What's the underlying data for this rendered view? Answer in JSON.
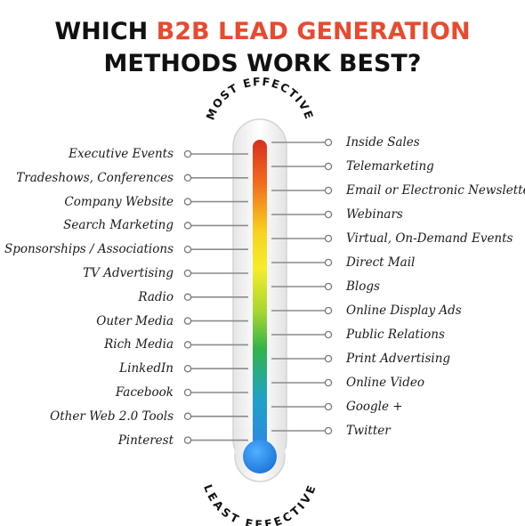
{
  "title": {
    "line1_prefix": "WHICH ",
    "line1_accent": "B2B LEAD GENERATION",
    "line2": "METHODS WORK BEST?"
  },
  "scale": {
    "top_label": "MOST EFFECTIVE",
    "bottom_label": "LEAST EFFECTIVE"
  },
  "colors": {
    "accent": "#e84a2f",
    "gradient": [
      "#d7301f",
      "#f26b1e",
      "#f7d21f",
      "#f6ec2c",
      "#a7d631",
      "#33b34a",
      "#1fa3c4",
      "#2a88e6"
    ]
  },
  "left_methods": [
    "Executive Events",
    "Tradeshows, Conferences",
    "Company Website",
    "Search Marketing",
    "Sponsorships / Associations",
    "TV Advertising",
    "Radio",
    "Outer Media",
    "Rich Media",
    "LinkedIn",
    "Facebook",
    "Other Web 2.0 Tools",
    "Pinterest"
  ],
  "right_methods": [
    "Inside Sales",
    "Telemarketing",
    "Email or Electronic Newsletters",
    "Webinars",
    "Virtual, On-Demand Events",
    "Direct Mail",
    "Blogs",
    "Online Display Ads",
    "Public Relations",
    "Print Advertising",
    "Online Video",
    "Google +",
    "Twitter"
  ]
}
